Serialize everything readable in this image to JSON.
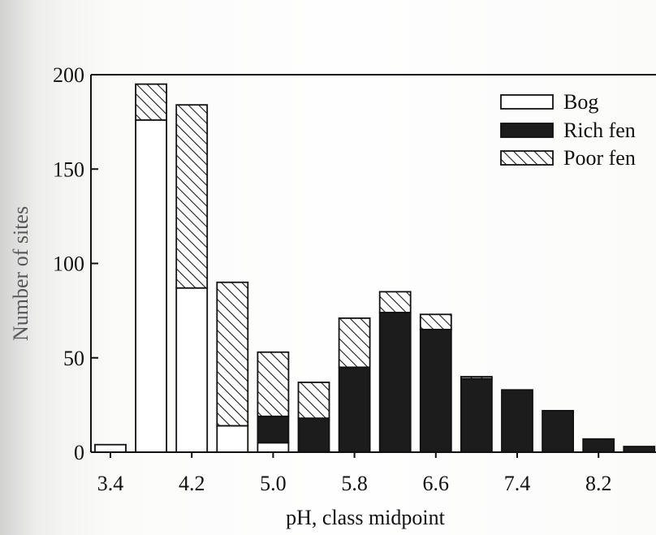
{
  "chart_data": {
    "type": "bar",
    "stacked": true,
    "xlabel": "pH, class midpoint",
    "ylabel": "Number of sites",
    "ylim": [
      0,
      200
    ],
    "y_ticks": [
      0,
      50,
      100,
      150,
      200
    ],
    "x_tick_labels": [
      "3.4",
      "4.2",
      "5.0",
      "5.8",
      "6.6",
      "7.4",
      "8.2"
    ],
    "categories": [
      "3.4",
      "3.8",
      "4.2",
      "4.6",
      "5.0",
      "5.4",
      "5.8",
      "6.2",
      "6.6",
      "7.0",
      "7.4",
      "7.8",
      "8.2",
      "8.6"
    ],
    "series": [
      {
        "name": "Bog",
        "values": [
          4,
          176,
          87,
          14,
          5,
          0,
          0,
          0,
          0,
          0,
          0,
          0,
          0,
          0
        ]
      },
      {
        "name": "Rich fen",
        "values": [
          0,
          0,
          0,
          0,
          14,
          18,
          45,
          74,
          65,
          39,
          33,
          22,
          7,
          3
        ]
      },
      {
        "name": "Poor fen",
        "values": [
          0,
          19,
          97,
          76,
          34,
          19,
          26,
          11,
          8,
          1,
          0,
          0,
          0,
          0
        ]
      }
    ],
    "legend_position": "top-right",
    "grid": false
  },
  "style": {
    "colors": {
      "bog": "#ffffff",
      "rich_fen": "#1c1c1c",
      "poor_fen_hatch": "#1c1c1c"
    }
  }
}
